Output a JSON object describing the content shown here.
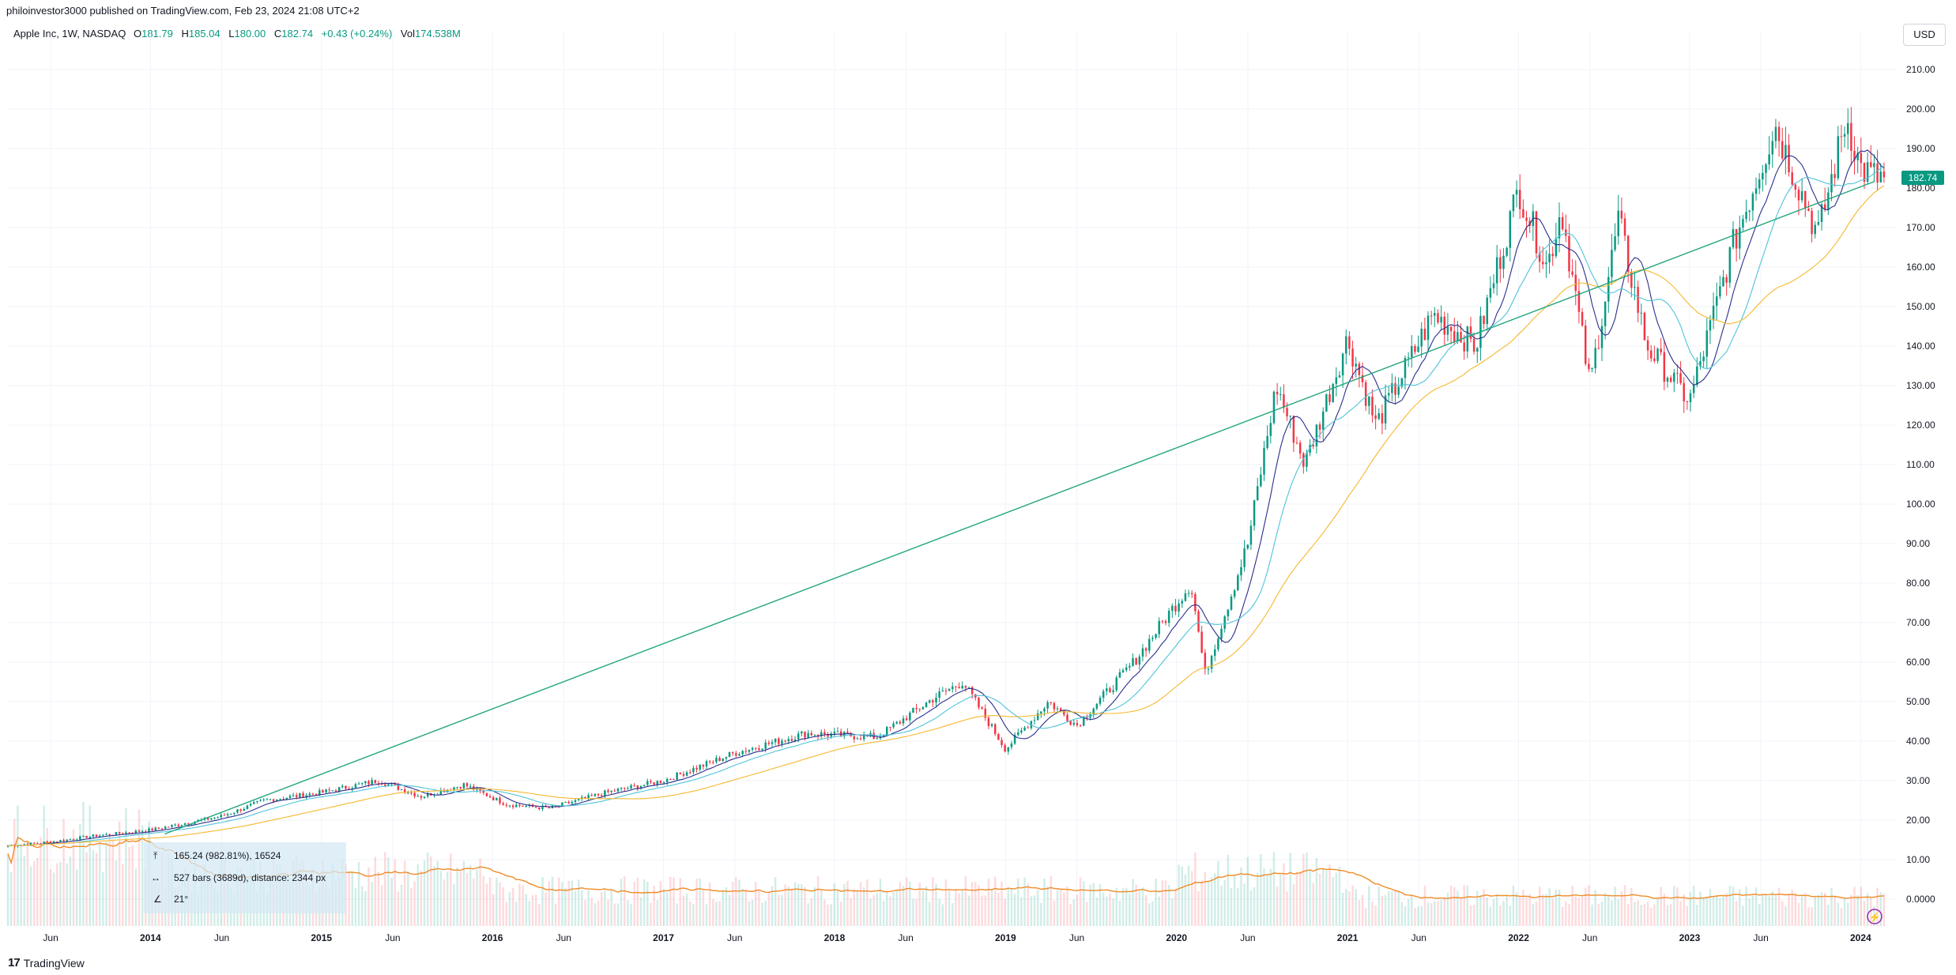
{
  "published": "philoinvestor3000 published on TradingView.com, Feb 23, 2024 21:08 UTC+2",
  "legend": {
    "symbol": "Apple Inc, 1W, NASDAQ",
    "open_label": "O",
    "open": "181.79",
    "high_label": "H",
    "high": "185.04",
    "low_label": "L",
    "low": "180.00",
    "close_label": "C",
    "close": "182.74",
    "change": "+0.43 (+0.24%)",
    "vol_label": "Vol",
    "vol": "174.538M"
  },
  "currency_button": "USD",
  "last_price_tag": "182.74",
  "brand": {
    "logo": "17",
    "name": "TradingView"
  },
  "measure": {
    "price_range": "165.24 (982.81%), 16524",
    "bars_range": "527 bars (3689d), distance: 2344 px",
    "angle": "21°"
  },
  "colors": {
    "up": "#089981",
    "down": "#f23645",
    "ma_short": "#2a2e8c",
    "ma_mid": "#4fc3d9",
    "ma_long": "#f5b82e",
    "volume_ma": "#f08c28",
    "trendline": "#22a67c",
    "grid": "#f0f3fa",
    "axis_text": "#131722"
  },
  "chart_data": {
    "type": "candlestick",
    "title": "",
    "interval": "1W",
    "x_range": [
      "2013-03",
      "2024-02"
    ],
    "ylim": [
      0,
      210
    ],
    "y_ticks": [
      0,
      10,
      20,
      30,
      40,
      50,
      60,
      70,
      80,
      90,
      100,
      110,
      120,
      130,
      140,
      150,
      160,
      170,
      180,
      190,
      200,
      210
    ],
    "y_tick_labels": [
      "0.0000",
      "10.00",
      "20.00",
      "30.00",
      "40.00",
      "50.00",
      "60.00",
      "70.00",
      "80.00",
      "90.00",
      "100.00",
      "110.00",
      "120.00",
      "130.00",
      "140.00",
      "150.00",
      "160.00",
      "170.00",
      "180.00",
      "190.00",
      "200.00",
      "210.00"
    ],
    "x_tick_labels": [
      {
        "date": "2013-06",
        "label": "Jun",
        "bold": false
      },
      {
        "date": "2014-01",
        "label": "2014",
        "bold": true
      },
      {
        "date": "2014-06",
        "label": "Jun",
        "bold": false
      },
      {
        "date": "2015-01",
        "label": "2015",
        "bold": true
      },
      {
        "date": "2015-06",
        "label": "Jun",
        "bold": false
      },
      {
        "date": "2016-01",
        "label": "2016",
        "bold": true
      },
      {
        "date": "2016-06",
        "label": "Jun",
        "bold": false
      },
      {
        "date": "2017-01",
        "label": "2017",
        "bold": true
      },
      {
        "date": "2017-06",
        "label": "Jun",
        "bold": false
      },
      {
        "date": "2018-01",
        "label": "2018",
        "bold": true
      },
      {
        "date": "2018-06",
        "label": "Jun",
        "bold": false
      },
      {
        "date": "2019-01",
        "label": "2019",
        "bold": true
      },
      {
        "date": "2019-06",
        "label": "Jun",
        "bold": false
      },
      {
        "date": "2020-01",
        "label": "2020",
        "bold": true
      },
      {
        "date": "2020-06",
        "label": "Jun",
        "bold": false
      },
      {
        "date": "2021-01",
        "label": "2021",
        "bold": true
      },
      {
        "date": "2021-06",
        "label": "Jun",
        "bold": false
      },
      {
        "date": "2022-01",
        "label": "2022",
        "bold": true
      },
      {
        "date": "2022-06",
        "label": "Jun",
        "bold": false
      },
      {
        "date": "2023-01",
        "label": "2023",
        "bold": true
      },
      {
        "date": "2023-06",
        "label": "Jun",
        "bold": false
      },
      {
        "date": "2024-01",
        "label": "2024",
        "bold": true
      }
    ],
    "price_path": [
      {
        "date": "2013-03",
        "price": 13.5
      },
      {
        "date": "2013-06",
        "price": 14.5
      },
      {
        "date": "2013-09",
        "price": 16.0
      },
      {
        "date": "2014-01",
        "price": 17.5
      },
      {
        "date": "2014-06",
        "price": 21.0
      },
      {
        "date": "2014-09",
        "price": 25.0
      },
      {
        "date": "2015-01",
        "price": 27.0
      },
      {
        "date": "2015-05",
        "price": 30.0
      },
      {
        "date": "2015-08",
        "price": 26.0
      },
      {
        "date": "2015-11",
        "price": 29.0
      },
      {
        "date": "2016-02",
        "price": 24.0
      },
      {
        "date": "2016-05",
        "price": 23.0
      },
      {
        "date": "2016-09",
        "price": 27.0
      },
      {
        "date": "2017-01",
        "price": 30.0
      },
      {
        "date": "2017-06",
        "price": 37.0
      },
      {
        "date": "2017-11",
        "price": 42.0
      },
      {
        "date": "2018-04",
        "price": 41.0
      },
      {
        "date": "2018-08",
        "price": 51.0
      },
      {
        "date": "2018-10",
        "price": 55.0
      },
      {
        "date": "2019-01",
        "price": 38.0
      },
      {
        "date": "2019-04",
        "price": 50.0
      },
      {
        "date": "2019-06",
        "price": 44.0
      },
      {
        "date": "2019-10",
        "price": 60.0
      },
      {
        "date": "2020-02",
        "price": 80.0
      },
      {
        "date": "2020-03",
        "price": 57.0
      },
      {
        "date": "2020-06",
        "price": 90.0
      },
      {
        "date": "2020-08",
        "price": 130.0
      },
      {
        "date": "2020-10",
        "price": 110.0
      },
      {
        "date": "2021-01",
        "price": 142.0
      },
      {
        "date": "2021-03",
        "price": 120.0
      },
      {
        "date": "2021-07",
        "price": 148.0
      },
      {
        "date": "2021-10",
        "price": 140.0
      },
      {
        "date": "2022-01",
        "price": 180.0
      },
      {
        "date": "2022-03",
        "price": 160.0
      },
      {
        "date": "2022-04",
        "price": 175.0
      },
      {
        "date": "2022-06",
        "price": 130.0
      },
      {
        "date": "2022-08",
        "price": 172.0
      },
      {
        "date": "2022-10",
        "price": 140.0
      },
      {
        "date": "2023-01",
        "price": 126.0
      },
      {
        "date": "2023-04",
        "price": 165.0
      },
      {
        "date": "2023-07",
        "price": 196.0
      },
      {
        "date": "2023-10",
        "price": 168.0
      },
      {
        "date": "2023-12",
        "price": 198.0
      },
      {
        "date": "2024-01",
        "price": 185.0
      },
      {
        "date": "2024-02",
        "price": 182.74
      }
    ],
    "trendline": [
      {
        "date": "2014-02",
        "price": 16.5
      },
      {
        "date": "2024-02",
        "price": 181.7
      }
    ],
    "last_close": 182.74
  }
}
